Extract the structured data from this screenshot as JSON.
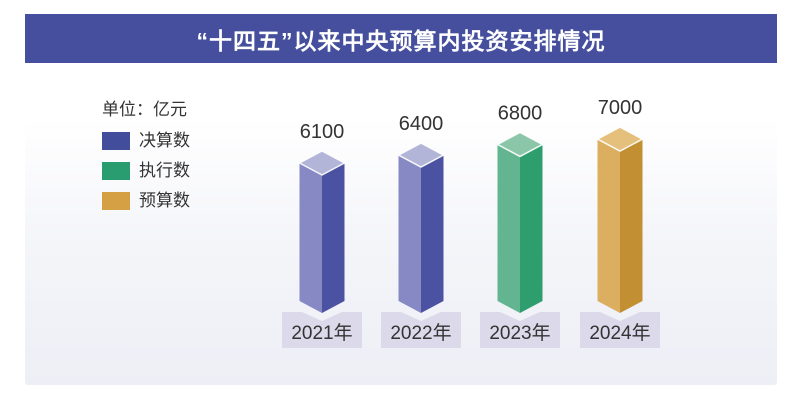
{
  "chart_data": {
    "type": "bar",
    "style": "3d-column",
    "title": "“十四五”以来中央预算内投资安排情况",
    "unit": "亿元",
    "categories": [
      "2021年",
      "2022年",
      "2023年",
      "2024年"
    ],
    "values": [
      6100,
      6400,
      6800,
      7000
    ],
    "value_labels": [
      "6100",
      "6400",
      "6800",
      "7000"
    ],
    "bar_series": [
      "决算数",
      "决算数",
      "执行数",
      "预算数"
    ],
    "ylim": [
      0,
      7500
    ],
    "grid": false,
    "legend_position": "top-left"
  },
  "legend": {
    "unit_label": "单位：亿元",
    "items": [
      {
        "label": "决算数",
        "color": "#424d9c"
      },
      {
        "label": "执行数",
        "color": "#2a9d70"
      },
      {
        "label": "预算数",
        "color": "#d4a043"
      }
    ]
  },
  "series_colors": {
    "决算数": {
      "left": "#8689c4",
      "right": "#4c52a2",
      "top": "#b2b4d8"
    },
    "执行数": {
      "left": "#63b591",
      "right": "#2f9e6e",
      "top": "#8cc6a8"
    },
    "预算数": {
      "left": "#dcae60",
      "right": "#c28f33",
      "top": "#e4c07c"
    }
  },
  "colors": {
    "title_bar_bg": "#454f9d",
    "title_text": "#ffffff",
    "panel_gradient_bottom": "#edeff6",
    "category_box_bg": "#dbd9ea",
    "value_text": "#333333"
  }
}
